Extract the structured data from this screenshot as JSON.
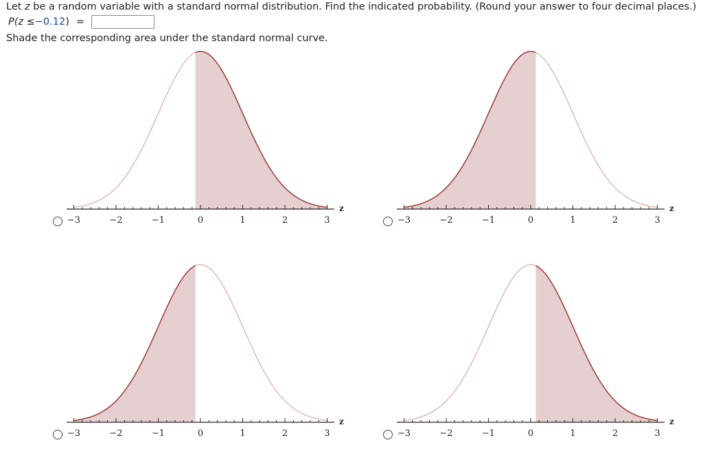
{
  "question": {
    "line1_prefix": "Let ",
    "line1_var": "z",
    "line1_suffix": " be a random variable with a standard normal distribution. Find the indicated probability. (Round your answer to four decimal places.)",
    "prob_prefix": "P(z ≤ ",
    "prob_value": "−0.12",
    "prob_suffix": ")",
    "equals": "=",
    "answer_value": "",
    "instruction": "Shade the corresponding area under the standard normal curve."
  },
  "axis": {
    "ticks": [
      "−3",
      "−2",
      "−1",
      "0",
      "1",
      "2",
      "3"
    ],
    "label": "z"
  },
  "colors": {
    "curve": "#a0443c",
    "curve_light": "#d9a8a4",
    "shade": "#e6cfd0",
    "axis": "#222222"
  },
  "options": [
    {
      "id": "option-a",
      "shade": "right",
      "cut": -0.12,
      "selected": false
    },
    {
      "id": "option-b",
      "shade": "left",
      "cut": 0.12,
      "selected": false
    },
    {
      "id": "option-c",
      "shade": "left",
      "cut": -0.12,
      "selected": false
    },
    {
      "id": "option-d",
      "shade": "right",
      "cut": 0.12,
      "selected": false
    }
  ],
  "chart_data": [
    {
      "type": "area",
      "title": "Option A",
      "distribution": "standard normal",
      "shaded_region": "z ≥ -0.12",
      "x_range": [
        -3,
        3
      ],
      "xlabel": "z",
      "ticks": [
        -3,
        -2,
        -1,
        0,
        1,
        2,
        3
      ]
    },
    {
      "type": "area",
      "title": "Option B",
      "distribution": "standard normal",
      "shaded_region": "z ≤ 0.12",
      "x_range": [
        -3,
        3
      ],
      "xlabel": "z",
      "ticks": [
        -3,
        -2,
        -1,
        0,
        1,
        2,
        3
      ]
    },
    {
      "type": "area",
      "title": "Option C",
      "distribution": "standard normal",
      "shaded_region": "z ≤ -0.12",
      "x_range": [
        -3,
        3
      ],
      "xlabel": "z",
      "ticks": [
        -3,
        -2,
        -1,
        0,
        1,
        2,
        3
      ]
    },
    {
      "type": "area",
      "title": "Option D",
      "distribution": "standard normal",
      "shaded_region": "z ≥ 0.12",
      "x_range": [
        -3,
        3
      ],
      "xlabel": "z",
      "ticks": [
        -3,
        -2,
        -1,
        0,
        1,
        2,
        3
      ]
    }
  ]
}
